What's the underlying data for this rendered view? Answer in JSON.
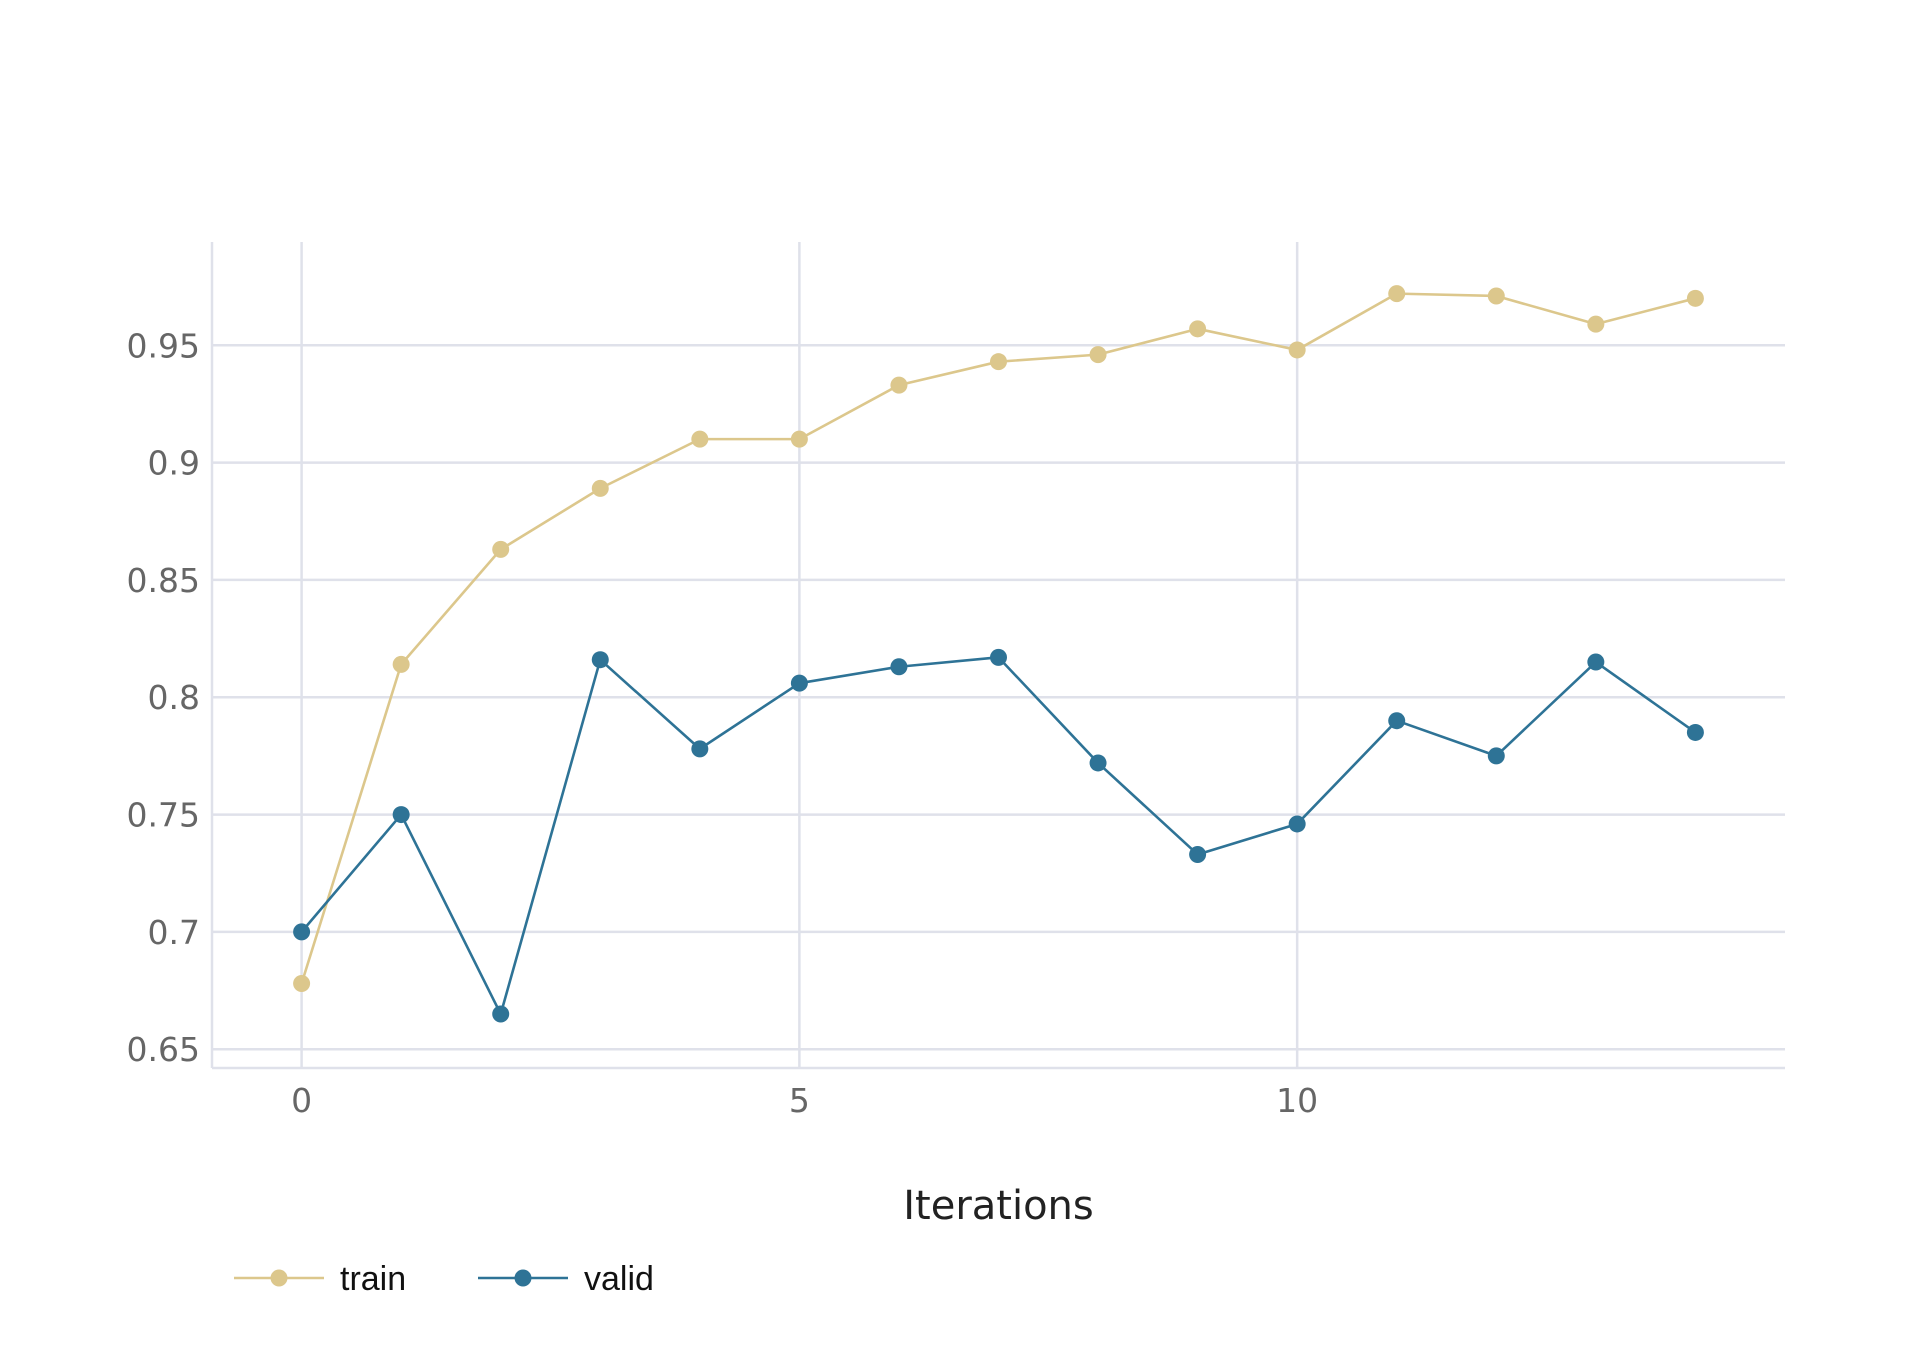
{
  "chart_data": {
    "type": "line",
    "title": "",
    "xlabel": "Iterations",
    "ylabel": "",
    "xlim": [
      -0.9,
      14.9
    ],
    "ylim": [
      0.642,
      0.994
    ],
    "x_ticks": [
      0,
      5,
      10
    ],
    "x_tick_labels": [
      "0",
      "5",
      "10"
    ],
    "y_ticks": [
      0.65,
      0.7,
      0.75,
      0.8,
      0.85,
      0.9,
      0.95
    ],
    "y_tick_labels": [
      "0.65",
      "0.7",
      "0.75",
      "0.8",
      "0.85",
      "0.9",
      "0.95"
    ],
    "grid": true,
    "legend_position": "bottom-left",
    "x": [
      0,
      1,
      2,
      3,
      4,
      5,
      6,
      7,
      8,
      9,
      10,
      11,
      12,
      13,
      14
    ],
    "series": [
      {
        "name": "train",
        "color": "#dcc78c",
        "values": [
          0.678,
          0.814,
          0.863,
          0.889,
          0.91,
          0.91,
          0.933,
          0.943,
          0.946,
          0.957,
          0.948,
          0.972,
          0.971,
          0.959,
          0.97
        ]
      },
      {
        "name": "valid",
        "color": "#2e7396",
        "values": [
          0.7,
          0.75,
          0.665,
          0.816,
          0.778,
          0.806,
          0.813,
          0.817,
          0.772,
          0.733,
          0.746,
          0.79,
          0.775,
          0.815,
          0.785
        ]
      }
    ]
  }
}
